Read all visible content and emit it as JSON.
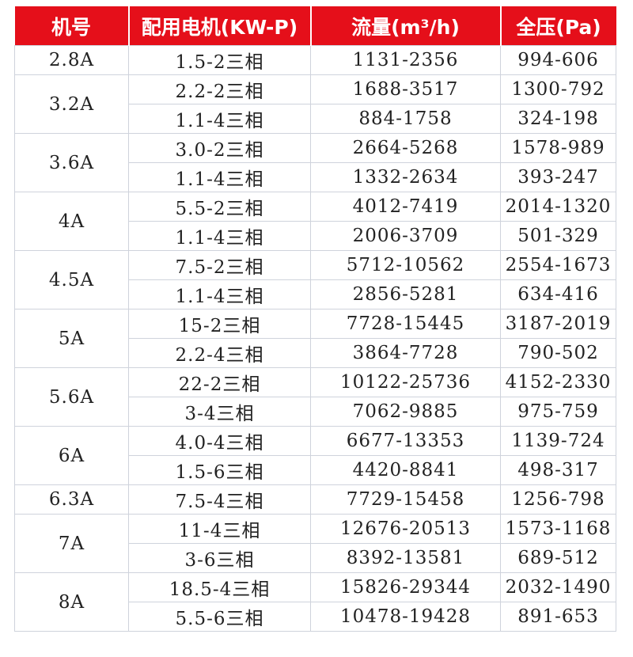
{
  "table": {
    "header": [
      "机号",
      "配用电机(KW-P)",
      "流量(m³/h)",
      "全压(Pa)"
    ],
    "groups": [
      {
        "model": "2.8A",
        "rows": [
          [
            "1.5-2三相",
            "1131-2356",
            "994-606"
          ]
        ]
      },
      {
        "model": "3.2A",
        "rows": [
          [
            "2.2-2三相",
            "1688-3517",
            "1300-792"
          ],
          [
            "1.1-4三相",
            "884-1758",
            "324-198"
          ]
        ]
      },
      {
        "model": "3.6A",
        "rows": [
          [
            "3.0-2三相",
            "2664-5268",
            "1578-989"
          ],
          [
            "1.1-4三相",
            "1332-2634",
            "393-247"
          ]
        ]
      },
      {
        "model": "4A",
        "rows": [
          [
            "5.5-2三相",
            "4012-7419",
            "2014-1320"
          ],
          [
            "1.1-4三相",
            "2006-3709",
            "501-329"
          ]
        ]
      },
      {
        "model": "4.5A",
        "rows": [
          [
            "7.5-2三相",
            "5712-10562",
            "2554-1673"
          ],
          [
            "1.1-4三相",
            "2856-5281",
            "634-416"
          ]
        ]
      },
      {
        "model": "5A",
        "rows": [
          [
            "15-2三相",
            "7728-15445",
            "3187-2019"
          ],
          [
            "2.2-4三相",
            "3864-7728",
            "790-502"
          ]
        ]
      },
      {
        "model": "5.6A",
        "rows": [
          [
            "22-2三相",
            "10122-25736",
            "4152-2330"
          ],
          [
            "3-4三相",
            "7062-9885",
            "975-759"
          ]
        ]
      },
      {
        "model": "6A",
        "rows": [
          [
            "4.0-4三相",
            "6677-13353",
            "1139-724"
          ],
          [
            "1.5-6三相",
            "4420-8841",
            "498-317"
          ]
        ]
      },
      {
        "model": "6.3A",
        "rows": [
          [
            "7.5-4三相",
            "7729-15458",
            "1256-798"
          ]
        ]
      },
      {
        "model": "7A",
        "rows": [
          [
            "11-4三相",
            "12676-20513",
            "1573-1168"
          ],
          [
            "3-6三相",
            "8392-13581",
            "689-512"
          ]
        ]
      },
      {
        "model": "8A",
        "rows": [
          [
            "18.5-4三相",
            "15826-29344",
            "2032-1490"
          ],
          [
            "5.5-6三相",
            "10478-19428",
            "891-653"
          ]
        ]
      }
    ]
  }
}
